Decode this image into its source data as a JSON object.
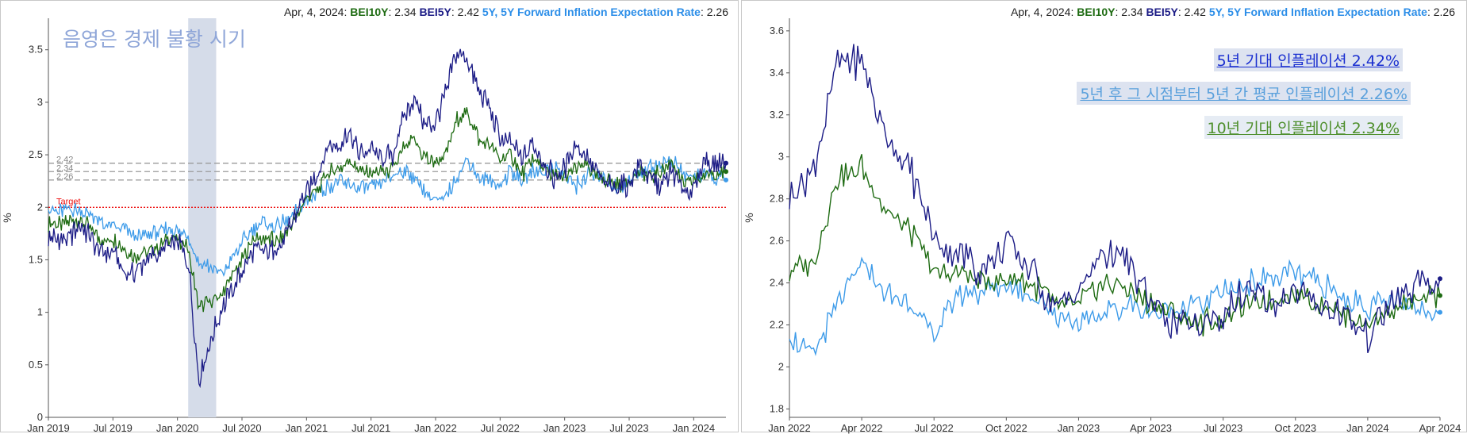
{
  "chart_data": [
    {
      "type": "line",
      "header": {
        "date": "Apr, 4, 2024:",
        "s1": "BEI10Y",
        "v1": ": 2.34",
        "s2": "BEI5Y",
        "v2": ": 2.42",
        "s3": "5Y, 5Y Forward Inflation Expectation Rate",
        "v3": ": 2.26"
      },
      "annotation": "음영은 경제 불황 시기",
      "ylabel": "%",
      "ylim": [
        0,
        3.8
      ],
      "yticks": [
        "0",
        "0.5",
        "1",
        "1.5",
        "2",
        "2.5",
        "3",
        "3.5"
      ],
      "xticks": [
        "Jan 2019",
        "Jul 2019",
        "Jan 2020",
        "Jul 2020",
        "Jan 2021",
        "Jul 2021",
        "Jan 2022",
        "Jul 2022",
        "Jan 2023",
        "Jul 2023",
        "Jan 2024"
      ],
      "recession": [
        "2020-02",
        "2020-04"
      ],
      "target": {
        "label": "Target",
        "value": 2.0
      },
      "ref_lines": [
        {
          "label": "2.42",
          "value": 2.42
        },
        {
          "label": "2.34",
          "value": 2.34
        },
        {
          "label": "2.26",
          "value": 2.26
        }
      ],
      "x": [
        "2019-01",
        "2019-02",
        "2019-03",
        "2019-04",
        "2019-05",
        "2019-06",
        "2019-07",
        "2019-08",
        "2019-09",
        "2019-10",
        "2019-11",
        "2019-12",
        "2020-01",
        "2020-02",
        "2020-03",
        "2020-04",
        "2020-05",
        "2020-06",
        "2020-07",
        "2020-08",
        "2020-09",
        "2020-10",
        "2020-11",
        "2020-12",
        "2021-01",
        "2021-02",
        "2021-03",
        "2021-04",
        "2021-05",
        "2021-06",
        "2021-07",
        "2021-08",
        "2021-09",
        "2021-10",
        "2021-11",
        "2021-12",
        "2022-01",
        "2022-02",
        "2022-03",
        "2022-04",
        "2022-05",
        "2022-06",
        "2022-07",
        "2022-08",
        "2022-09",
        "2022-10",
        "2022-11",
        "2022-12",
        "2023-01",
        "2023-02",
        "2023-03",
        "2023-04",
        "2023-05",
        "2023-06",
        "2023-07",
        "2023-08",
        "2023-09",
        "2023-10",
        "2023-11",
        "2023-12",
        "2024-01",
        "2024-02",
        "2024-03",
        "2024-04"
      ],
      "series": [
        {
          "name": "BEI10Y",
          "color": "#1e6b12",
          "values": [
            1.85,
            1.83,
            1.87,
            1.88,
            1.79,
            1.68,
            1.7,
            1.6,
            1.54,
            1.56,
            1.6,
            1.7,
            1.7,
            1.6,
            1.05,
            1.1,
            1.15,
            1.35,
            1.48,
            1.7,
            1.7,
            1.68,
            1.75,
            1.9,
            2.1,
            2.15,
            2.33,
            2.35,
            2.45,
            2.34,
            2.33,
            2.33,
            2.35,
            2.55,
            2.65,
            2.47,
            2.44,
            2.5,
            2.85,
            2.9,
            2.65,
            2.6,
            2.45,
            2.5,
            2.3,
            2.45,
            2.4,
            2.3,
            2.3,
            2.38,
            2.4,
            2.28,
            2.25,
            2.2,
            2.25,
            2.33,
            2.3,
            2.35,
            2.42,
            2.2,
            2.25,
            2.3,
            2.35,
            2.34
          ]
        },
        {
          "name": "BEI5Y",
          "color": "#1c1c86",
          "values": [
            1.7,
            1.7,
            1.72,
            1.82,
            1.7,
            1.55,
            1.6,
            1.35,
            1.4,
            1.47,
            1.55,
            1.62,
            1.65,
            1.5,
            0.35,
            0.7,
            1.0,
            1.2,
            1.38,
            1.58,
            1.58,
            1.6,
            1.7,
            1.93,
            2.15,
            2.3,
            2.58,
            2.6,
            2.7,
            2.5,
            2.55,
            2.45,
            2.5,
            2.85,
            3.05,
            2.75,
            2.8,
            3.1,
            3.5,
            3.4,
            3.1,
            2.95,
            2.65,
            2.6,
            2.45,
            2.6,
            2.45,
            2.27,
            2.37,
            2.6,
            2.52,
            2.3,
            2.2,
            2.22,
            2.22,
            2.42,
            2.25,
            2.2,
            2.35,
            2.15,
            2.17,
            2.45,
            2.4,
            2.42
          ]
        },
        {
          "name": "5Y, 5Y Forward Inflation Expectation Rate",
          "color": "#3d9be9",
          "values": [
            2.0,
            1.95,
            1.98,
            1.98,
            1.93,
            1.85,
            1.8,
            1.8,
            1.72,
            1.72,
            1.75,
            1.8,
            1.78,
            1.72,
            1.45,
            1.45,
            1.35,
            1.5,
            1.65,
            1.8,
            1.85,
            1.82,
            1.85,
            1.95,
            2.05,
            2.15,
            2.2,
            2.25,
            2.2,
            2.17,
            2.18,
            2.25,
            2.3,
            2.35,
            2.3,
            2.15,
            2.05,
            2.1,
            2.3,
            2.45,
            2.3,
            2.25,
            2.2,
            2.35,
            2.25,
            2.35,
            2.35,
            2.38,
            2.3,
            2.2,
            2.3,
            2.3,
            2.25,
            2.18,
            2.25,
            2.33,
            2.38,
            2.42,
            2.45,
            2.32,
            2.3,
            2.3,
            2.28,
            2.26
          ]
        }
      ]
    },
    {
      "type": "line",
      "header": {
        "date": "Apr, 4, 2024:",
        "s1": "BEI10Y",
        "v1": ": 2.34",
        "s2": "BEI5Y",
        "v2": ": 2.42",
        "s3": "5Y, 5Y Forward Inflation Expectation Rate",
        "v3": ": 2.26"
      },
      "annotations": [
        "5년 기대 인플레이션 2.42%",
        "5년 후 그 시점부터 5년 간 평균 인플레이션 2.26%",
        "10년 기대 인플레이션 2.34%"
      ],
      "ylabel": "%",
      "ylim": [
        1.76,
        3.66
      ],
      "yticks": [
        "1.8",
        "2",
        "2.2",
        "2.4",
        "2.6",
        "2.8",
        "3",
        "3.2",
        "3.4",
        "3.6"
      ],
      "xticks": [
        "Jan 2022",
        "Apr 2022",
        "Jul 2022",
        "Oct 2022",
        "Jan 2023",
        "Apr 2023",
        "Jul 2023",
        "Oct 2023",
        "Jan 2024",
        "Apr 2024"
      ],
      "x": [
        "2022-01",
        "2022-02",
        "2022-03",
        "2022-04",
        "2022-05",
        "2022-06",
        "2022-07",
        "2022-08",
        "2022-09",
        "2022-10",
        "2022-11",
        "2022-12",
        "2023-01",
        "2023-02",
        "2023-03",
        "2023-04",
        "2023-05",
        "2023-06",
        "2023-07",
        "2023-08",
        "2023-09",
        "2023-10",
        "2023-11",
        "2023-12",
        "2024-01",
        "2024-02",
        "2024-03",
        "2024-04"
      ],
      "series": [
        {
          "name": "BEI10Y",
          "color": "#1e6b12",
          "values": [
            2.45,
            2.5,
            2.9,
            2.95,
            2.75,
            2.65,
            2.45,
            2.45,
            2.4,
            2.42,
            2.4,
            2.3,
            2.3,
            2.4,
            2.38,
            2.3,
            2.25,
            2.2,
            2.25,
            2.3,
            2.32,
            2.35,
            2.3,
            2.25,
            2.2,
            2.28,
            2.3,
            2.34
          ]
        },
        {
          "name": "BEI5Y",
          "color": "#1c1c86",
          "values": [
            2.8,
            2.95,
            3.45,
            3.45,
            3.1,
            2.95,
            2.6,
            2.55,
            2.45,
            2.6,
            2.45,
            2.3,
            2.35,
            2.55,
            2.5,
            2.3,
            2.2,
            2.2,
            2.25,
            2.35,
            2.3,
            2.35,
            2.3,
            2.25,
            2.15,
            2.3,
            2.38,
            2.42
          ]
        },
        {
          "name": "5Y, 5Y Forward Inflation Expectation Rate",
          "color": "#3d9be9",
          "values": [
            2.15,
            2.05,
            2.3,
            2.5,
            2.35,
            2.3,
            2.15,
            2.35,
            2.35,
            2.4,
            2.35,
            2.25,
            2.2,
            2.25,
            2.3,
            2.25,
            2.28,
            2.3,
            2.35,
            2.4,
            2.42,
            2.45,
            2.4,
            2.32,
            2.28,
            2.3,
            2.3,
            2.26
          ]
        }
      ]
    }
  ]
}
